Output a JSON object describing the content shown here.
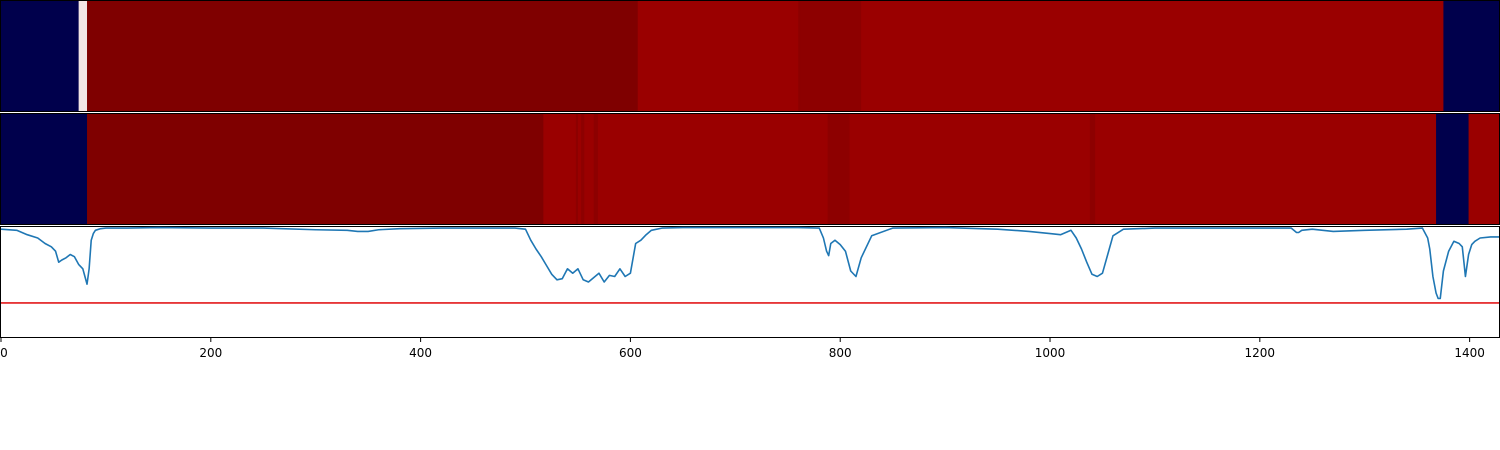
{
  "chart_data": [
    {
      "type": "heatmap",
      "x_range": [
        0,
        1428
      ],
      "segments": [
        {
          "start": 0,
          "end": 74,
          "color": "#00004c"
        },
        {
          "start": 74,
          "end": 82,
          "color": "#f3e6e6"
        },
        {
          "start": 82,
          "end": 607,
          "color": "#7f0000"
        },
        {
          "start": 607,
          "end": 760,
          "color": "#9a0000"
        },
        {
          "start": 760,
          "end": 762,
          "color": "#8d0000"
        },
        {
          "start": 762,
          "end": 820,
          "color": "#8d0000"
        },
        {
          "start": 820,
          "end": 1375,
          "color": "#9a0000"
        },
        {
          "start": 1375,
          "end": 1428,
          "color": "#00004c"
        }
      ]
    },
    {
      "type": "heatmap",
      "x_range": [
        0,
        1428
      ],
      "segments": [
        {
          "start": 0,
          "end": 82,
          "color": "#00004c"
        },
        {
          "start": 82,
          "end": 517,
          "color": "#7f0000"
        },
        {
          "start": 517,
          "end": 548,
          "color": "#9a0000"
        },
        {
          "start": 548,
          "end": 550,
          "color": "#8d0000"
        },
        {
          "start": 550,
          "end": 553,
          "color": "#9a0000"
        },
        {
          "start": 553,
          "end": 556,
          "color": "#8d0000"
        },
        {
          "start": 556,
          "end": 565,
          "color": "#9a0000"
        },
        {
          "start": 565,
          "end": 569,
          "color": "#8d0000"
        },
        {
          "start": 569,
          "end": 788,
          "color": "#9a0000"
        },
        {
          "start": 788,
          "end": 809,
          "color": "#8d0000"
        },
        {
          "start": 809,
          "end": 1038,
          "color": "#9a0000"
        },
        {
          "start": 1038,
          "end": 1043,
          "color": "#8d0000"
        },
        {
          "start": 1043,
          "end": 1368,
          "color": "#9a0000"
        },
        {
          "start": 1368,
          "end": 1399,
          "color": "#00004c"
        },
        {
          "start": 1399,
          "end": 1428,
          "color": "#9a0000"
        }
      ]
    },
    {
      "type": "line",
      "xlim": [
        0,
        1428
      ],
      "ylim": [
        0,
        1
      ],
      "xticks": [
        0,
        200,
        400,
        600,
        800,
        1000,
        1200,
        1400
      ],
      "xtick_labels": [
        "0",
        "200",
        "400",
        "600",
        "800",
        "1000",
        "1200",
        "1400"
      ],
      "threshold": 0.31,
      "threshold_color": "#e31a1c",
      "line_color": "#1f77b4",
      "series": [
        {
          "x": [
            0,
            15,
            25,
            35,
            42,
            48,
            52,
            55,
            58,
            62,
            66,
            70,
            74,
            78,
            80,
            82,
            84,
            86,
            88,
            90,
            95,
            100,
            120,
            150,
            200,
            250,
            300,
            330,
            340,
            350,
            360,
            380,
            420,
            460,
            490,
            500,
            505,
            510,
            515,
            520,
            525,
            530,
            535,
            540,
            545,
            550,
            555,
            560,
            565,
            570,
            575,
            580,
            585,
            590,
            595,
            600,
            605,
            610,
            615,
            620,
            630,
            650,
            700,
            760,
            780,
            784,
            787,
            789,
            791,
            795,
            800,
            805,
            810,
            815,
            820,
            830,
            850,
            900,
            950,
            980,
            1000,
            1010,
            1015,
            1020,
            1025,
            1030,
            1035,
            1040,
            1045,
            1050,
            1055,
            1060,
            1070,
            1100,
            1150,
            1200,
            1230,
            1235,
            1237,
            1240,
            1250,
            1260,
            1270,
            1300,
            1340,
            1355,
            1360,
            1362,
            1365,
            1368,
            1370,
            1372,
            1375,
            1380,
            1385,
            1390,
            1393,
            1396,
            1399,
            1402,
            1405,
            1410,
            1420,
            1428
          ],
          "y": [
            0.98,
            0.97,
            0.93,
            0.9,
            0.85,
            0.82,
            0.78,
            0.68,
            0.7,
            0.72,
            0.75,
            0.73,
            0.66,
            0.62,
            0.55,
            0.48,
            0.62,
            0.88,
            0.94,
            0.97,
            0.985,
            0.99,
            0.99,
            0.995,
            0.99,
            0.99,
            0.975,
            0.97,
            0.96,
            0.96,
            0.975,
            0.985,
            0.99,
            0.99,
            0.99,
            0.98,
            0.88,
            0.8,
            0.73,
            0.65,
            0.57,
            0.52,
            0.53,
            0.62,
            0.58,
            0.62,
            0.52,
            0.5,
            0.54,
            0.58,
            0.5,
            0.56,
            0.55,
            0.62,
            0.55,
            0.58,
            0.85,
            0.88,
            0.93,
            0.97,
            0.99,
            0.995,
            0.995,
            0.995,
            0.99,
            0.9,
            0.78,
            0.74,
            0.85,
            0.88,
            0.84,
            0.78,
            0.6,
            0.55,
            0.72,
            0.92,
            0.99,
            0.995,
            0.98,
            0.96,
            0.94,
            0.93,
            0.95,
            0.97,
            0.9,
            0.8,
            0.68,
            0.57,
            0.55,
            0.58,
            0.75,
            0.92,
            0.98,
            0.99,
            0.99,
            0.99,
            0.99,
            0.95,
            0.95,
            0.97,
            0.98,
            0.97,
            0.96,
            0.97,
            0.98,
            0.99,
            0.9,
            0.8,
            0.55,
            0.4,
            0.35,
            0.35,
            0.6,
            0.78,
            0.87,
            0.85,
            0.82,
            0.55,
            0.75,
            0.84,
            0.87,
            0.9,
            0.91,
            0.91
          ]
        }
      ]
    }
  ]
}
